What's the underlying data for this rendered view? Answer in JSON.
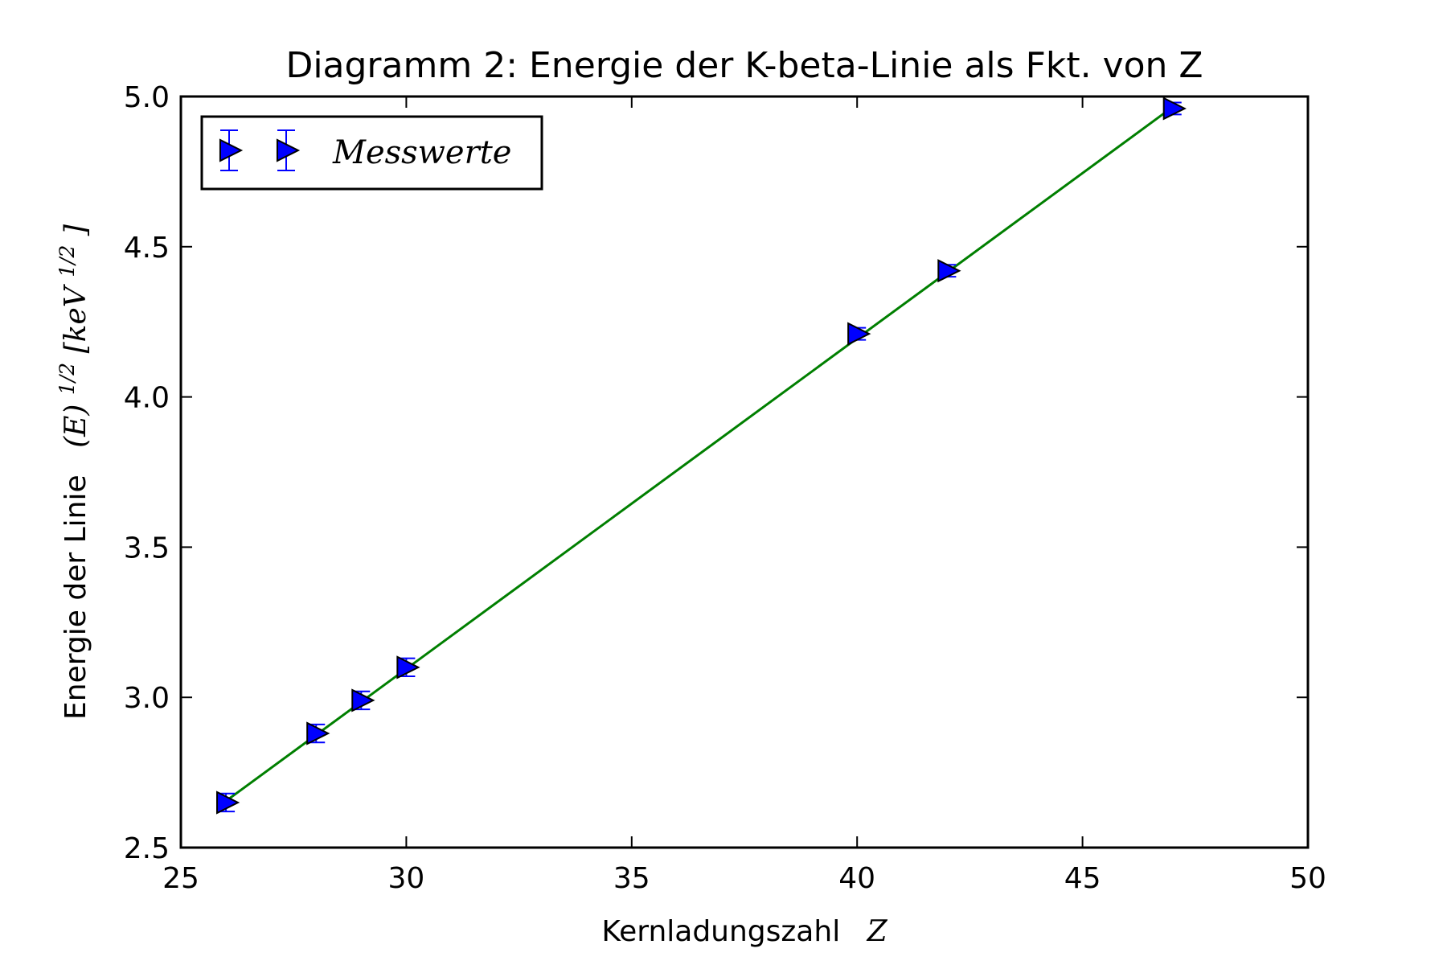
{
  "chart_data": {
    "type": "scatter",
    "title": "Diagramm 2: Energie der K-beta-Linie als Fkt. von Z",
    "xlabel": {
      "text": "Kernladungszahl",
      "math": "Z"
    },
    "ylabel": {
      "text": "Energie der Linie",
      "math_base": "(E)",
      "math_exp": "1/2",
      "unit_open": "[keV",
      "unit_exp": "1/2",
      "unit_close": "]"
    },
    "xlim": [
      25,
      50
    ],
    "ylim": [
      2.5,
      5.0
    ],
    "xticks": [
      "25",
      "30",
      "35",
      "40",
      "45",
      "50"
    ],
    "yticks": [
      "2.5",
      "3.0",
      "3.5",
      "4.0",
      "4.5",
      "5.0"
    ],
    "grid": false,
    "legend": {
      "placement": "top-left",
      "label": "Messwerte"
    },
    "colors": {
      "marker": "#0000ff",
      "errorbar": "#0000ff",
      "fit_line": "#007f00",
      "axes": "#000000"
    },
    "series": [
      {
        "name": "Messwerte",
        "marker": "triangle-right",
        "points": [
          {
            "x": 26,
            "y": 2.65,
            "yerr": 0.03
          },
          {
            "x": 28,
            "y": 2.88,
            "yerr": 0.03
          },
          {
            "x": 29,
            "y": 2.99,
            "yerr": 0.03
          },
          {
            "x": 30,
            "y": 3.1,
            "yerr": 0.03
          },
          {
            "x": 40,
            "y": 4.21,
            "yerr": 0.02
          },
          {
            "x": 42,
            "y": 4.42,
            "yerr": 0.02
          },
          {
            "x": 47,
            "y": 4.96,
            "yerr": 0.02
          }
        ]
      }
    ],
    "fit": {
      "type": "line",
      "x": [
        26,
        47
      ],
      "y": [
        2.655,
        4.965
      ]
    }
  }
}
